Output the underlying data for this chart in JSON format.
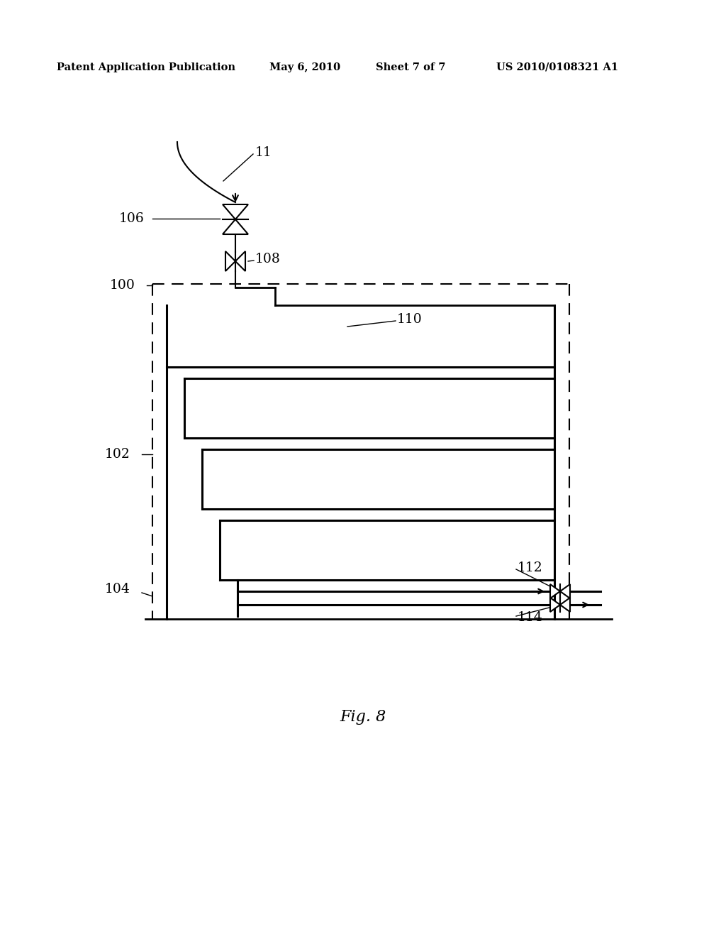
{
  "bg_color": "#ffffff",
  "header_text": "Patent Application Publication",
  "header_date": "May 6, 2010",
  "header_sheet": "Sheet 7 of 7",
  "header_patent": "US 2010/0108321 A1",
  "fig_label": "Fig. 8"
}
